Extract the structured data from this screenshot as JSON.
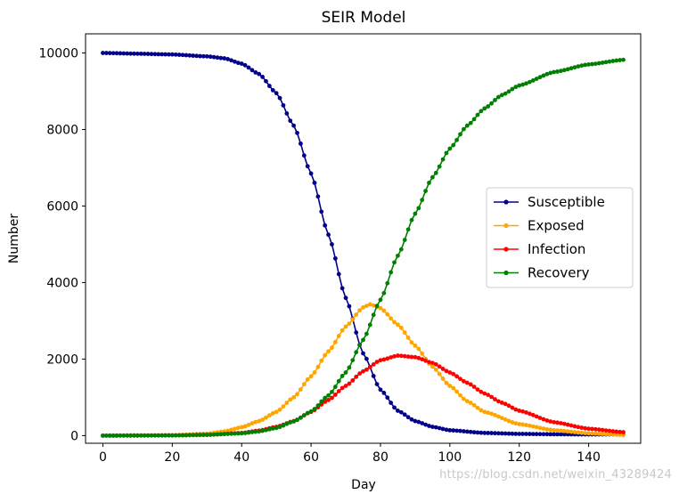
{
  "chart_data": {
    "type": "line",
    "title": "SEIR Model",
    "xlabel": "Day",
    "ylabel": "Number",
    "xlim": [
      -5,
      155
    ],
    "ylim": [
      -200,
      10500
    ],
    "xticks": [
      0,
      20,
      40,
      60,
      80,
      100,
      120,
      140
    ],
    "yticks": [
      0,
      2000,
      4000,
      6000,
      8000,
      10000
    ],
    "grid": false,
    "legend_position": "center-right",
    "x_range": [
      0,
      150
    ],
    "x_step": 1,
    "series": [
      {
        "name": "Susceptible",
        "color": "#00008b",
        "marker": "point",
        "points": [
          [
            0,
            10000
          ],
          [
            10,
            9980
          ],
          [
            20,
            9960
          ],
          [
            30,
            9910
          ],
          [
            35,
            9860
          ],
          [
            40,
            9720
          ],
          [
            45,
            9450
          ],
          [
            50,
            8950
          ],
          [
            55,
            8100
          ],
          [
            60,
            6850
          ],
          [
            65,
            5250
          ],
          [
            70,
            3600
          ],
          [
            75,
            2150
          ],
          [
            80,
            1200
          ],
          [
            85,
            650
          ],
          [
            90,
            380
          ],
          [
            95,
            230
          ],
          [
            100,
            140
          ],
          [
            110,
            70
          ],
          [
            120,
            45
          ],
          [
            130,
            35
          ],
          [
            140,
            30
          ],
          [
            150,
            30
          ]
        ]
      },
      {
        "name": "Exposed",
        "color": "#ffa500",
        "marker": "point",
        "points": [
          [
            0,
            0
          ],
          [
            20,
            10
          ],
          [
            30,
            50
          ],
          [
            35,
            110
          ],
          [
            40,
            220
          ],
          [
            45,
            380
          ],
          [
            50,
            620
          ],
          [
            55,
            1000
          ],
          [
            60,
            1550
          ],
          [
            65,
            2200
          ],
          [
            70,
            2850
          ],
          [
            75,
            3350
          ],
          [
            77,
            3430
          ],
          [
            80,
            3330
          ],
          [
            85,
            2900
          ],
          [
            90,
            2350
          ],
          [
            95,
            1800
          ],
          [
            100,
            1300
          ],
          [
            105,
            900
          ],
          [
            110,
            620
          ],
          [
            120,
            300
          ],
          [
            130,
            140
          ],
          [
            140,
            60
          ],
          [
            150,
            20
          ]
        ]
      },
      {
        "name": "Infection",
        "color": "#ff0000",
        "marker": "point",
        "points": [
          [
            0,
            0
          ],
          [
            20,
            5
          ],
          [
            30,
            20
          ],
          [
            40,
            70
          ],
          [
            45,
            130
          ],
          [
            50,
            230
          ],
          [
            55,
            380
          ],
          [
            60,
            620
          ],
          [
            65,
            930
          ],
          [
            70,
            1300
          ],
          [
            75,
            1680
          ],
          [
            80,
            1970
          ],
          [
            85,
            2090
          ],
          [
            90,
            2050
          ],
          [
            95,
            1900
          ],
          [
            100,
            1650
          ],
          [
            105,
            1380
          ],
          [
            110,
            1100
          ],
          [
            115,
            860
          ],
          [
            120,
            650
          ],
          [
            130,
            350
          ],
          [
            140,
            180
          ],
          [
            150,
            90
          ]
        ]
      },
      {
        "name": "Recovery",
        "color": "#008000",
        "marker": "point",
        "points": [
          [
            0,
            0
          ],
          [
            20,
            5
          ],
          [
            30,
            20
          ],
          [
            40,
            60
          ],
          [
            45,
            110
          ],
          [
            50,
            200
          ],
          [
            55,
            370
          ],
          [
            60,
            630
          ],
          [
            65,
            1050
          ],
          [
            70,
            1650
          ],
          [
            75,
            2500
          ],
          [
            80,
            3550
          ],
          [
            85,
            4700
          ],
          [
            90,
            5800
          ],
          [
            95,
            6750
          ],
          [
            100,
            7500
          ],
          [
            105,
            8100
          ],
          [
            110,
            8550
          ],
          [
            115,
            8900
          ],
          [
            120,
            9150
          ],
          [
            130,
            9500
          ],
          [
            140,
            9700
          ],
          [
            150,
            9820
          ]
        ]
      }
    ]
  },
  "watermark": "https://blog.csdn.net/weixin_43289424"
}
